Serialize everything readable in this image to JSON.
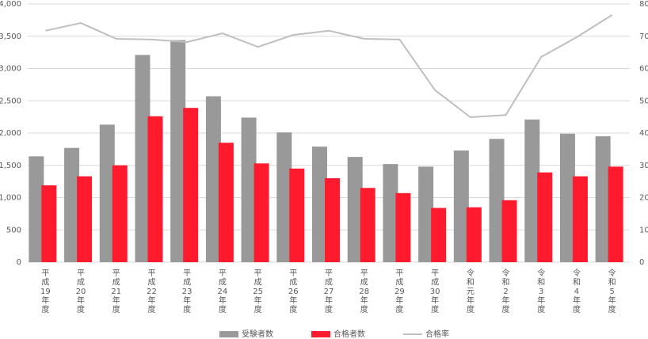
{
  "chart_data": {
    "type": "bar-line",
    "categories": [
      "平成19年度",
      "平成20年度",
      "平成21年度",
      "平成22年度",
      "平成23年度",
      "平成24年度",
      "平成25年度",
      "平成26年度",
      "平成27年度",
      "平成28年度",
      "平成29年度",
      "平成30年度",
      "令和元年度",
      "令和2年度",
      "令和3年度",
      "令和4年度",
      "令和5年度"
    ],
    "series": [
      {
        "name": "受験者数",
        "color": "#999999",
        "kind": "bar",
        "values": [
          1640,
          1770,
          2130,
          3210,
          3440,
          2570,
          2240,
          2010,
          1790,
          1630,
          1520,
          1480,
          1730,
          1910,
          2210,
          1990,
          1950
        ]
      },
      {
        "name": "合格者数",
        "color": "#ff1a2e",
        "kind": "bar",
        "values": [
          1190,
          1330,
          1500,
          2260,
          2390,
          1850,
          1530,
          1450,
          1300,
          1150,
          1070,
          840,
          850,
          960,
          1390,
          1330,
          1480
        ]
      },
      {
        "name": "合格率",
        "color": "#bfbfbf",
        "kind": "line",
        "axis": "y2",
        "values": [
          71.7,
          74.1,
          69.2,
          69.0,
          68.2,
          70.9,
          66.7,
          70.4,
          71.7,
          69.2,
          69.0,
          53.3,
          44.9,
          45.6,
          63.6,
          69.7,
          76.6
        ]
      }
    ],
    "ylim": [
      0,
      4000
    ],
    "yticks": [
      0,
      500,
      {
        "value": 1000,
        "label": "1,000"
      },
      {
        "value": 1500,
        "label": "1,500"
      },
      {
        "value": 2000,
        "label": "2,000"
      },
      {
        "value": 2500,
        "label": "2,500"
      },
      {
        "value": 3000,
        "label": "3,000"
      },
      {
        "value": 3500,
        "label": "3,500"
      },
      {
        "value": 4000,
        "label": "4,000"
      }
    ],
    "y2lim": [
      0,
      80
    ],
    "y2ticks": [
      0,
      10,
      20,
      30,
      40,
      50,
      60,
      70,
      80
    ],
    "grid": true,
    "legend": "bottom"
  }
}
